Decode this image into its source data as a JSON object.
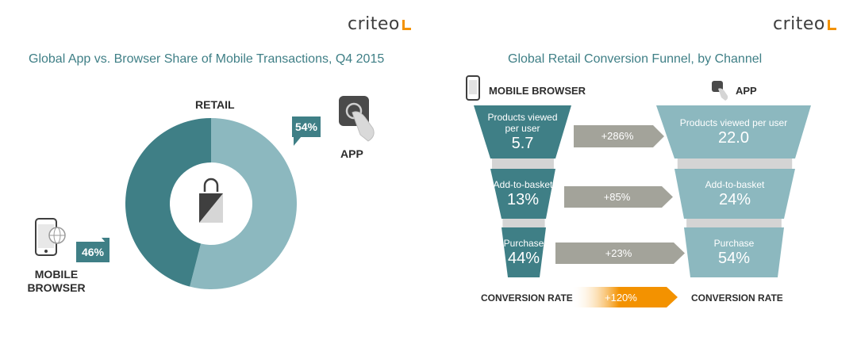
{
  "brand": "criteo",
  "colors": {
    "dark_teal": "#3f7f86",
    "light_teal": "#8cb8bf",
    "gray_arrow": "#a3a39a",
    "orange": "#f39200",
    "stem_gray": "#d4d4d4"
  },
  "icons": [
    "phone-browser-icon",
    "app-touch-icon",
    "shopping-bag-icon"
  ],
  "chart_data": [
    {
      "type": "pie",
      "title": "Global App vs. Browser Share of Mobile Transactions, Q4 2015",
      "center_label": "RETAIL",
      "categories": [
        "APP",
        "MOBILE BROWSER"
      ],
      "values": [
        54,
        46
      ],
      "value_labels": [
        "54%",
        "46%"
      ]
    },
    {
      "type": "bar",
      "title": "Global Retail Conversion Funnel, by Channel",
      "series": [
        {
          "name": "MOBILE BROWSER",
          "stages": [
            "Products viewed per user",
            "Add-to-basket",
            "Purchase"
          ],
          "value_labels": [
            "5.7",
            "13%",
            "44%"
          ],
          "values": [
            5.7,
            13,
            44
          ]
        },
        {
          "name": "APP",
          "stages": [
            "Products viewed per user",
            "Add-to-basket",
            "Purchase"
          ],
          "value_labels": [
            "22.0",
            "24%",
            "54%"
          ],
          "values": [
            22.0,
            24,
            54
          ]
        }
      ],
      "differences": [
        "+286%",
        "+85%",
        "+23%"
      ],
      "conversion_rate": {
        "label_left": "CONVERSION RATE",
        "label_right": "CONVERSION RATE",
        "value": "+120%"
      }
    }
  ]
}
